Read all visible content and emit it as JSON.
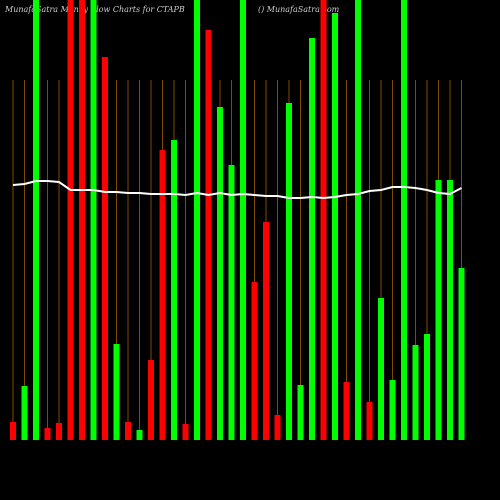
{
  "chart_data": {
    "type": "bar",
    "title": "MunafaSatra  Money Flow  Charts for CTAPB",
    "subtitle": "() MunafaSatra.com",
    "categories": [
      null,
      null,
      null,
      null,
      null,
      null,
      null,
      null,
      null,
      null,
      null,
      null,
      null,
      null,
      null,
      null,
      null,
      null,
      null,
      null,
      null,
      null,
      null,
      null,
      null,
      null,
      null,
      null,
      null,
      null,
      null,
      null,
      null,
      null,
      null,
      null,
      null,
      null,
      null,
      null
    ],
    "values": [
      18,
      54,
      440,
      12,
      17,
      440,
      440,
      440,
      383,
      96,
      18,
      10,
      80,
      290,
      300,
      16,
      440,
      410,
      333,
      275,
      440,
      158,
      218,
      25,
      337,
      55,
      402,
      440,
      427,
      58,
      440,
      38,
      142,
      60,
      440,
      95,
      106,
      260,
      260,
      172
    ],
    "colors": [
      "#ff0000",
      "#00ff00",
      "#00ff00",
      "#ff0000",
      "#ff0000",
      "#ff0000",
      "#ff0000",
      "#00ff00",
      "#ff0000",
      "#00ff00",
      "#ff0000",
      "#00ff00",
      "#ff0000",
      "#ff0000",
      "#00ff00",
      "#ff0000",
      "#00ff00",
      "#ff0000",
      "#00ff00",
      "#00ff00",
      "#00ff00",
      "#ff0000",
      "#ff0000",
      "#ff0000",
      "#00ff00",
      "#00ff00",
      "#00ff00",
      "#ff0000",
      "#00ff00",
      "#ff0000",
      "#00ff00",
      "#ff0000",
      "#00ff00",
      "#00ff00",
      "#00ff00",
      "#00ff00",
      "#00ff00",
      "#00ff00",
      "#00ff00",
      "#00ff00"
    ],
    "line": {
      "color": "#ffffff",
      "values": [
        255,
        256,
        259,
        259,
        258,
        250,
        250,
        250,
        248,
        248,
        247,
        247,
        246,
        246,
        246,
        245,
        247,
        245,
        247,
        245,
        246,
        245,
        244,
        244,
        242,
        242,
        243,
        242,
        243,
        245,
        246,
        249,
        250,
        253,
        253,
        252,
        250,
        247,
        246,
        252
      ]
    },
    "ylim": [
      0,
      440
    ]
  }
}
